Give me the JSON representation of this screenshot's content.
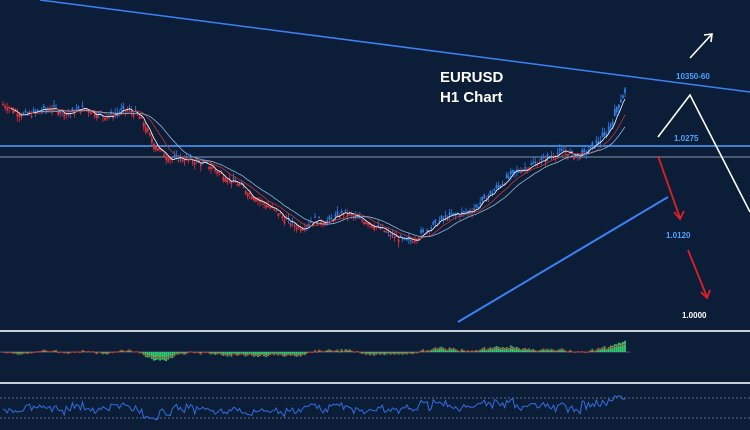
{
  "chart_data": {
    "type": "candlestick",
    "title_line1": "EURUSD",
    "title_line2": "H1 Chart",
    "levels": [
      {
        "label": "10350-60",
        "color": "#4aa3ff"
      },
      {
        "label": "1.0275",
        "color": "#4aa3ff"
      },
      {
        "label": "1.0120",
        "color": "#4aa3ff"
      },
      {
        "label": "1.0000",
        "color": "#ffffff"
      }
    ],
    "price_path": [
      0.77,
      0.76,
      0.745,
      0.735,
      0.73,
      0.735,
      0.745,
      0.75,
      0.755,
      0.75,
      0.74,
      0.735,
      0.745,
      0.755,
      0.75,
      0.74,
      0.73,
      0.725,
      0.73,
      0.74,
      0.748,
      0.745,
      0.735,
      0.705,
      0.66,
      0.62,
      0.6,
      0.58,
      0.57,
      0.575,
      0.57,
      0.565,
      0.56,
      0.555,
      0.545,
      0.53,
      0.515,
      0.5,
      0.49,
      0.475,
      0.455,
      0.44,
      0.425,
      0.41,
      0.395,
      0.38,
      0.36,
      0.345,
      0.33,
      0.325,
      0.34,
      0.355,
      0.35,
      0.345,
      0.355,
      0.37,
      0.38,
      0.37,
      0.36,
      0.35,
      0.345,
      0.33,
      0.32,
      0.305,
      0.295,
      0.285,
      0.275,
      0.28,
      0.295,
      0.31,
      0.325,
      0.34,
      0.355,
      0.365,
      0.37,
      0.375,
      0.38,
      0.39,
      0.41,
      0.43,
      0.45,
      0.47,
      0.49,
      0.51,
      0.525,
      0.535,
      0.545,
      0.555,
      0.565,
      0.575,
      0.585,
      0.595,
      0.6,
      0.59,
      0.58,
      0.59,
      0.605,
      0.625,
      0.645,
      0.67,
      0.72,
      0.78,
      0.82
    ]
  }
}
